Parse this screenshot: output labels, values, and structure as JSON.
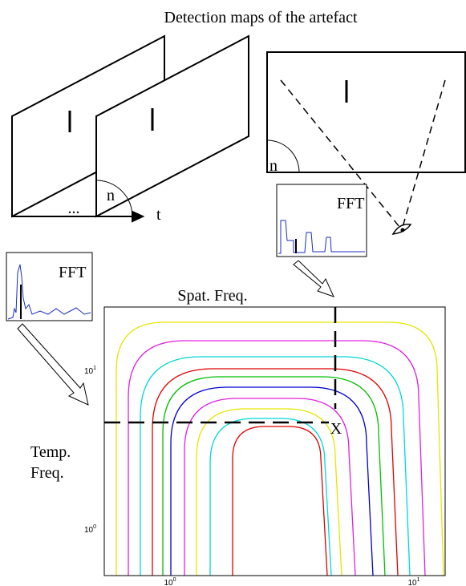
{
  "title": "Detection maps of the artefact",
  "frames": {
    "ellipsis": "...",
    "angle_label": "n",
    "time_label": "t"
  },
  "single_frame": {
    "angle_label": "n"
  },
  "fft_plots": [
    {
      "label": "FFT"
    },
    {
      "label": "FFT"
    }
  ],
  "main_plot": {
    "x_label": "Spat. Freq.",
    "y_label": [
      "Temp.",
      "Freq."
    ],
    "marker": "X",
    "yticks": [
      {
        "base": "10",
        "exp": "1"
      },
      {
        "base": "10",
        "exp": "0"
      }
    ],
    "xticks": [
      {
        "base": "10",
        "exp": "0"
      },
      {
        "base": "10",
        "exp": "1"
      }
    ]
  }
}
